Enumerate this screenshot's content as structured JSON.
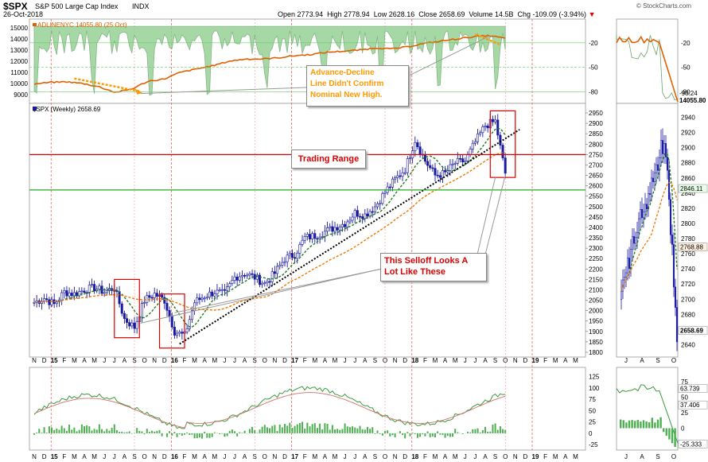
{
  "header": {
    "symbol": "$SPX",
    "name": "S&P 500 Large Cap Index",
    "exchange": "INDX",
    "date": "26-Oct-2018",
    "open_label": "Open",
    "open": "2773.94",
    "high_label": "High",
    "high": "2778.94",
    "low_label": "Low",
    "low": "2628.16",
    "close_label": "Close",
    "close": "2658.69",
    "volume_label": "Volume",
    "volume": "14.5B",
    "chg_label": "Chg",
    "chg": "-109.09 (-3.94%)",
    "watermark": "© StockCharts.com"
  },
  "colors": {
    "price_up": "#1a1aa0",
    "price_down": "#1a1aa0",
    "ma_short": "#1e7a1e",
    "ma_long": "#ee7700",
    "trend": "#000000",
    "range_line": "#dd0000",
    "support_line": "#22aa22",
    "annotation_text": "#dd0000",
    "orange_note": "#ff9900",
    "indicator_fill": "#4caf50",
    "indicator_line": "#6aa56a",
    "advdec": "#e06000",
    "vertical_year": "#e05050"
  },
  "annotations": {
    "adv_decline": "Advance-Decline\nLine Didn't Confirm\nNominal New High.",
    "trading_range": "Trading Range",
    "selloff": "This Selloff Looks A\nLot Like These"
  },
  "top_panel": {
    "legend": "ADLINENYC 14055.80 (25 Oct)",
    "left_ticks": [
      "15000",
      "14000",
      "13000",
      "12000",
      "11000",
      "10000",
      "9000"
    ],
    "right_ticks": [
      "-20",
      "-50",
      "-80"
    ],
    "side_ticks": [
      "-20",
      "-50",
      "-80"
    ],
    "side_labels": [
      "-90.24",
      "14055.80"
    ]
  },
  "main_panel": {
    "legend": "$SPX (Weekly) 2658.69",
    "right_ticks": [
      "2950",
      "2900",
      "2850",
      "2800",
      "2750",
      "2700",
      "2650",
      "2600",
      "2550",
      "2500",
      "2450",
      "2400",
      "2350",
      "2300",
      "2250",
      "2200",
      "2150",
      "2100",
      "2050",
      "2000",
      "1950",
      "1900",
      "1850",
      "1800"
    ],
    "side_ticks": [
      "2940",
      "2920",
      "2900",
      "2880",
      "2860",
      "2840",
      "2820",
      "2800",
      "2780",
      "2760",
      "2740",
      "2720",
      "2700",
      "2680",
      "2660",
      "2640"
    ],
    "side_labels": [
      "2846.11",
      "2768.88",
      "2658.69"
    ]
  },
  "bottom_panel": {
    "right_ticks": [
      "125",
      "100",
      "75",
      "50",
      "25",
      "0",
      "-25"
    ],
    "side_ticks": [
      "75",
      "50",
      "25",
      "0",
      "-25"
    ],
    "side_labels": [
      "63.739",
      "37.406",
      "-25.333"
    ]
  },
  "x_axis_main": [
    "N",
    "D",
    "15",
    "F",
    "M",
    "A",
    "M",
    "J",
    "J",
    "A",
    "S",
    "O",
    "N",
    "D",
    "16",
    "F",
    "M",
    "A",
    "M",
    "J",
    "J",
    "A",
    "S",
    "O",
    "N",
    "D",
    "17",
    "F",
    "M",
    "A",
    "M",
    "J",
    "J",
    "A",
    "S",
    "O",
    "N",
    "D",
    "18",
    "F",
    "M",
    "A",
    "M",
    "J",
    "J",
    "A",
    "S",
    "O",
    "N",
    "D",
    "19",
    "F",
    "M",
    "A",
    "M"
  ],
  "x_axis_side": [
    "J",
    "A",
    "S",
    "O"
  ],
  "chart_data": {
    "type": "line",
    "title": "$SPX S&P 500 Large Cap Index INDX",
    "series": [
      {
        "name": "$SPX (Weekly)",
        "x": [
          "2014-11",
          "2014-12",
          "2015-01",
          "2015-02",
          "2015-03",
          "2015-04",
          "2015-05",
          "2015-06",
          "2015-07",
          "2015-08",
          "2015-09",
          "2015-10",
          "2015-11",
          "2015-12",
          "2016-01",
          "2016-02",
          "2016-03",
          "2016-04",
          "2016-05",
          "2016-06",
          "2016-07",
          "2016-08",
          "2016-09",
          "2016-10",
          "2016-11",
          "2016-12",
          "2017-01",
          "2017-02",
          "2017-03",
          "2017-04",
          "2017-05",
          "2017-06",
          "2017-07",
          "2017-08",
          "2017-09",
          "2017-10",
          "2017-11",
          "2017-12",
          "2018-01",
          "2018-02",
          "2018-03",
          "2018-04",
          "2018-05",
          "2018-06",
          "2018-07",
          "2018-08",
          "2018-09",
          "2018-10"
        ],
        "values": [
          2040,
          2060,
          2030,
          2090,
          2080,
          2100,
          2110,
          2090,
          2110,
          1960,
          1920,
          2050,
          2080,
          2050,
          1900,
          1880,
          2040,
          2070,
          2090,
          2080,
          2160,
          2180,
          2160,
          2130,
          2180,
          2250,
          2270,
          2350,
          2360,
          2380,
          2400,
          2420,
          2470,
          2460,
          2500,
          2570,
          2630,
          2680,
          2820,
          2720,
          2650,
          2660,
          2710,
          2720,
          2810,
          2890,
          2910,
          2660
        ]
      }
    ],
    "range_top": 2750,
    "range_bottom": 2580,
    "ylim": [
      1800,
      2950
    ],
    "xlabel": "",
    "ylabel": ""
  }
}
